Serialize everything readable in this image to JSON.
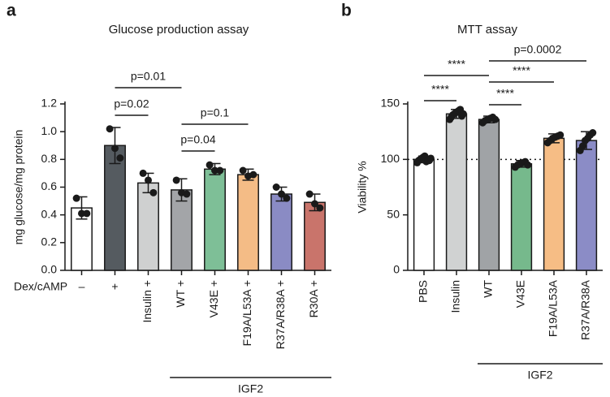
{
  "chart_data": [
    {
      "type": "bar",
      "panel": "a",
      "title": "Glucose production assay",
      "ylabel": "mg glucose/mg protein",
      "row_label": "Dex/cAMP",
      "group_label": "IGF2",
      "categories": [
        "–",
        "+",
        "Insulin +",
        "WT +",
        "V43E +",
        "F19A/L53A +",
        "R37A/R38A +",
        "R30A +"
      ],
      "values": [
        0.45,
        0.9,
        0.63,
        0.58,
        0.73,
        0.69,
        0.55,
        0.49
      ],
      "error": [
        0.08,
        0.13,
        0.07,
        0.08,
        0.04,
        0.04,
        0.05,
        0.06
      ],
      "points": [
        [
          0.52,
          0.41,
          0.41
        ],
        [
          1.02,
          0.88,
          0.81
        ],
        [
          0.7,
          0.65,
          0.56
        ],
        [
          0.65,
          0.56,
          0.55
        ],
        [
          0.76,
          0.72,
          0.72
        ],
        [
          0.72,
          0.68,
          0.69
        ],
        [
          0.6,
          0.55,
          0.52
        ],
        [
          0.55,
          0.48,
          0.45
        ]
      ],
      "colors": [
        "#ffffff",
        "#555b60",
        "#cfd0d0",
        "#a3a5a8",
        "#7ebf97",
        "#f4bc86",
        "#8a8bc4",
        "#c9746b"
      ],
      "ylim": [
        0,
        1.2
      ],
      "yticks": [
        {
          "value": 0,
          "label": "0.0"
        },
        0.2,
        0.4,
        0.6,
        0.8,
        {
          "value": 1,
          "label": "1.0"
        },
        1.2
      ],
      "annotations": [
        "p=0.02",
        "p=0.01",
        "p=0.04",
        "p=0.1"
      ]
    },
    {
      "type": "bar",
      "panel": "b",
      "title": "MTT assay",
      "ylabel": "Viability %",
      "group_label": "IGF2",
      "categories": [
        "PBS",
        "Insulin",
        "WT",
        "V43E",
        "F19A/L53A",
        "R37A/R38A"
      ],
      "values": [
        100,
        141,
        136,
        96,
        119,
        117
      ],
      "error": [
        3,
        4,
        3,
        3,
        4,
        8
      ],
      "points": [
        [
          97,
          99,
          100,
          101,
          102,
          103,
          98,
          100,
          99,
          101
        ],
        [
          136,
          138,
          140,
          141,
          142,
          143,
          144,
          145,
          139,
          141
        ],
        [
          133,
          135,
          136,
          137,
          138,
          136
        ],
        [
          93,
          95,
          96,
          97,
          98,
          95
        ],
        [
          115,
          117,
          119,
          120,
          121,
          122
        ],
        [
          108,
          112,
          117,
          119,
          122,
          124
        ]
      ],
      "colors": [
        "#ffffff",
        "#d0d2d2",
        "#a0a3a6",
        "#76b98c",
        "#f6bd85",
        "#8b8cc6"
      ],
      "ylim": [
        0,
        150
      ],
      "yticks": [
        0,
        50,
        100,
        150
      ],
      "reference_line": 100,
      "annotations": [
        "****",
        "****",
        "****",
        "****",
        "p=0.0002"
      ]
    }
  ]
}
